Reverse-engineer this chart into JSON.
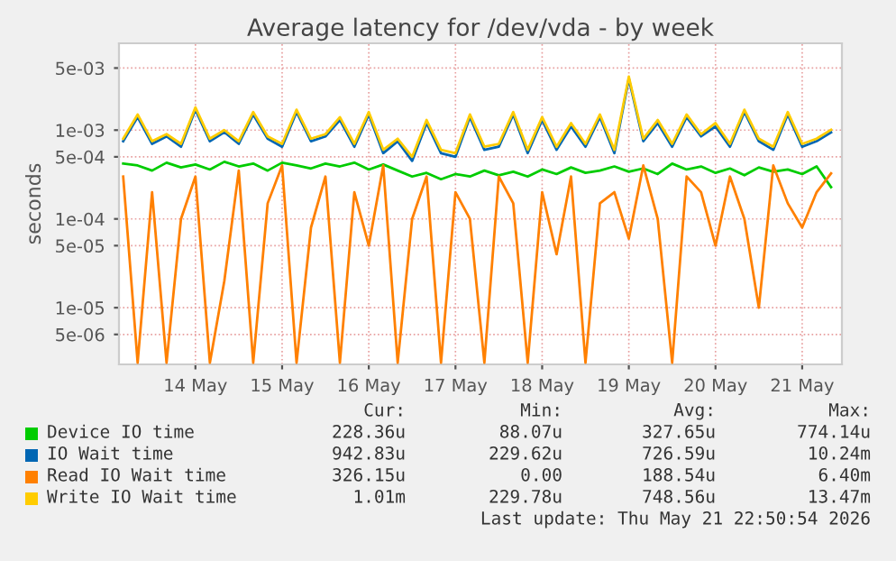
{
  "chart_data": {
    "type": "line",
    "title": "Average latency for /dev/vda - by week",
    "ylabel": "seconds",
    "log": "y",
    "grid": true,
    "legend": "bottom",
    "line_style": "solid",
    "marker": "none",
    "xlim": [
      "2026-05-13T14:50",
      "2026-05-21T23:00"
    ],
    "xticks": [
      {
        "value": "2026-05-14T12:00",
        "label": "14 May"
      },
      {
        "value": "2026-05-15T12:00",
        "label": "15 May"
      },
      {
        "value": "2026-05-16T12:00",
        "label": "16 May"
      },
      {
        "value": "2026-05-17T12:00",
        "label": "17 May"
      },
      {
        "value": "2026-05-18T12:00",
        "label": "18 May"
      },
      {
        "value": "2026-05-19T12:00",
        "label": "19 May"
      },
      {
        "value": "2026-05-20T12:00",
        "label": "20 May"
      },
      {
        "value": "2026-05-21T12:00",
        "label": "21 May"
      }
    ],
    "ylim": [
      2.3e-06,
      0.0095
    ],
    "yticks": [
      {
        "value": 5e-06,
        "label": "5e-06"
      },
      {
        "value": 1e-05,
        "label": "1e-05"
      },
      {
        "value": 5e-05,
        "label": "5e-05"
      },
      {
        "value": 0.0001,
        "label": "1e-04"
      },
      {
        "value": 0.0005,
        "label": "5e-04"
      },
      {
        "value": 0.001,
        "label": "1e-03"
      },
      {
        "value": 0.005,
        "label": "5e-03"
      }
    ],
    "x": [
      "2026-05-13T16:00",
      "2026-05-13T20:00",
      "2026-05-14T00:00",
      "2026-05-14T04:00",
      "2026-05-14T08:00",
      "2026-05-14T12:00",
      "2026-05-14T16:00",
      "2026-05-14T20:00",
      "2026-05-15T00:00",
      "2026-05-15T04:00",
      "2026-05-15T08:00",
      "2026-05-15T12:00",
      "2026-05-15T16:00",
      "2026-05-15T20:00",
      "2026-05-16T00:00",
      "2026-05-16T04:00",
      "2026-05-16T08:00",
      "2026-05-16T12:00",
      "2026-05-16T16:00",
      "2026-05-16T20:00",
      "2026-05-17T00:00",
      "2026-05-17T04:00",
      "2026-05-17T08:00",
      "2026-05-17T12:00",
      "2026-05-17T16:00",
      "2026-05-17T20:00",
      "2026-05-18T00:00",
      "2026-05-18T04:00",
      "2026-05-18T08:00",
      "2026-05-18T12:00",
      "2026-05-18T16:00",
      "2026-05-18T20:00",
      "2026-05-19T00:00",
      "2026-05-19T04:00",
      "2026-05-19T08:00",
      "2026-05-19T12:00",
      "2026-05-19T16:00",
      "2026-05-19T20:00",
      "2026-05-20T00:00",
      "2026-05-20T04:00",
      "2026-05-20T08:00",
      "2026-05-20T12:00",
      "2026-05-20T16:00",
      "2026-05-20T20:00",
      "2026-05-21T00:00",
      "2026-05-21T04:00",
      "2026-05-21T08:00",
      "2026-05-21T12:00",
      "2026-05-21T16:00",
      "2026-05-21T20:00"
    ],
    "series": [
      {
        "name": "Device IO time",
        "color": "#00cc00",
        "values": [
          0.00042,
          0.0004,
          0.00035,
          0.00043,
          0.00038,
          0.00041,
          0.00036,
          0.00044,
          0.00039,
          0.00042,
          0.00035,
          0.00043,
          0.0004,
          0.00037,
          0.00042,
          0.00039,
          0.00043,
          0.00036,
          0.00041,
          0.00035,
          0.0003,
          0.00033,
          0.00028,
          0.00032,
          0.0003,
          0.00035,
          0.00031,
          0.00034,
          0.0003,
          0.00036,
          0.00032,
          0.00038,
          0.00033,
          0.00035,
          0.00039,
          0.00034,
          0.00037,
          0.00032,
          0.00042,
          0.00036,
          0.00039,
          0.00033,
          0.00037,
          0.00031,
          0.00038,
          0.00034,
          0.00036,
          0.00032,
          0.00039,
          0.000228
        ]
      },
      {
        "name": "IO Wait time",
        "color": "#0066b3",
        "values": [
          0.00075,
          0.0014,
          0.0007,
          0.00085,
          0.00065,
          0.0017,
          0.00075,
          0.00095,
          0.0007,
          0.0015,
          0.0008,
          0.00065,
          0.0016,
          0.00075,
          0.00085,
          0.0013,
          0.00065,
          0.0015,
          0.00055,
          0.00075,
          0.00045,
          0.0012,
          0.00055,
          0.0005,
          0.0014,
          0.0006,
          0.00065,
          0.0015,
          0.00055,
          0.0013,
          0.0006,
          0.0011,
          0.00065,
          0.0014,
          0.00055,
          0.0038,
          0.00075,
          0.0012,
          0.00065,
          0.0014,
          0.00085,
          0.0011,
          0.00065,
          0.0016,
          0.00075,
          0.0006,
          0.0015,
          0.00065,
          0.00075,
          0.000943
        ]
      },
      {
        "name": "Read IO Wait time",
        "color": "#ff8000",
        "values": [
          0.0003,
          2.4e-06,
          0.0002,
          2.4e-06,
          0.0001,
          0.0003,
          2.4e-06,
          2e-05,
          0.00035,
          2.4e-06,
          0.00015,
          0.0004,
          2.4e-06,
          8e-05,
          0.0003,
          2.4e-06,
          0.0002,
          5e-05,
          0.0004,
          2.4e-06,
          0.0001,
          0.0003,
          2.4e-06,
          0.0002,
          0.0001,
          2.4e-06,
          0.0003,
          0.00015,
          2.4e-06,
          0.0002,
          4e-05,
          0.0003,
          2.4e-06,
          0.00015,
          0.0002,
          6e-05,
          0.0004,
          0.0001,
          2.4e-06,
          0.0003,
          0.0002,
          5e-05,
          0.0003,
          0.0001,
          1e-05,
          0.0004,
          0.00015,
          8e-05,
          0.0002,
          0.000326
        ]
      },
      {
        "name": "Write IO Wait time",
        "color": "#ffcc00",
        "values": [
          0.0008,
          0.0015,
          0.00075,
          0.0009,
          0.0007,
          0.0018,
          0.0008,
          0.001,
          0.00075,
          0.0016,
          0.00085,
          0.0007,
          0.0017,
          0.0008,
          0.0009,
          0.0014,
          0.0007,
          0.0016,
          0.0006,
          0.0008,
          0.0005,
          0.0013,
          0.0006,
          0.00055,
          0.0015,
          0.00065,
          0.0007,
          0.0016,
          0.0006,
          0.0014,
          0.00065,
          0.0012,
          0.0007,
          0.0015,
          0.0006,
          0.004,
          0.0008,
          0.0013,
          0.0007,
          0.0015,
          0.0009,
          0.0012,
          0.0007,
          0.0017,
          0.0008,
          0.00065,
          0.0016,
          0.0007,
          0.0008,
          0.00101
        ]
      }
    ],
    "annotations": [
      "Cur:",
      "Min:",
      "Avg:",
      "Max:",
      "228.36u",
      "88.07u",
      "327.65u",
      "774.14u",
      "942.83u",
      "229.62u",
      "726.59u",
      "10.24m",
      "326.15u",
      "0.00",
      "188.54u",
      "6.40m",
      "1.01m",
      "229.78u",
      "748.56u",
      "13.47m",
      "Last update: Thu May 21 22:50:54 2026"
    ]
  }
}
